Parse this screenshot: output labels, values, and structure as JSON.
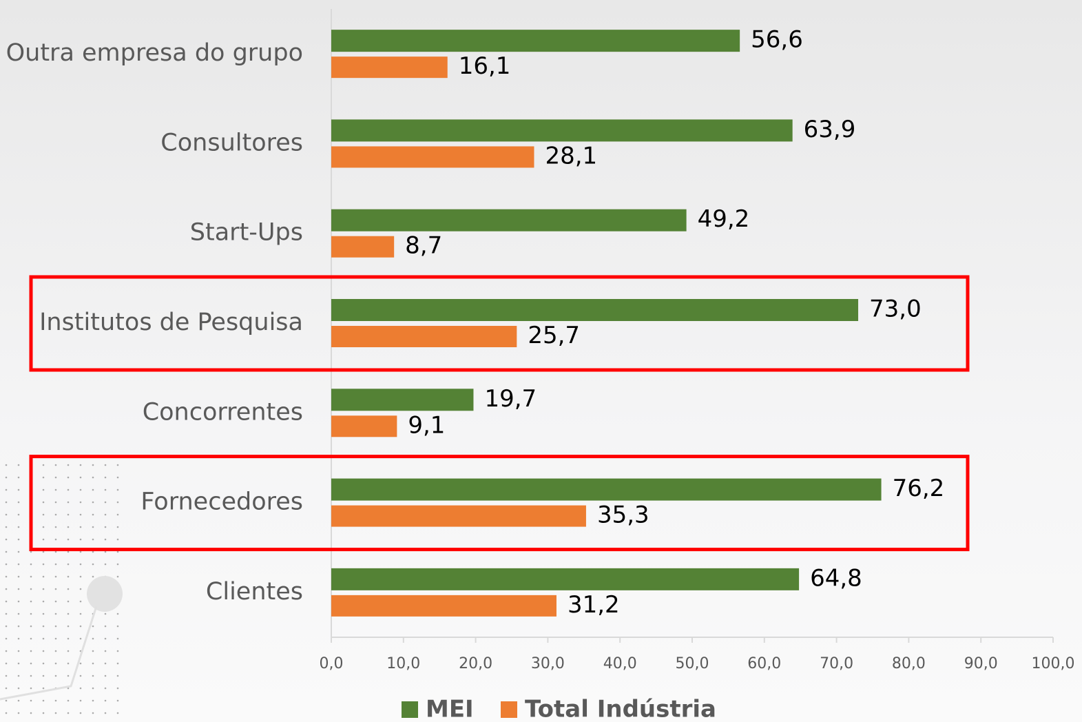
{
  "chart_data": {
    "type": "bar",
    "orientation": "horizontal",
    "categories": [
      "Outra empresa do grupo",
      "Consultores",
      "Start-Ups",
      "Institutos de Pesquisa",
      "Concorrentes",
      "Fornecedores",
      "Clientes"
    ],
    "series": [
      {
        "name": "MEI",
        "color": "#548235",
        "values": [
          56.6,
          63.9,
          49.2,
          73.0,
          19.7,
          76.2,
          64.8
        ],
        "value_labels": [
          "56,6",
          "63,9",
          "49,2",
          "73,0",
          "19,7",
          "76,2",
          "64,8"
        ]
      },
      {
        "name": "Total Indústria",
        "color": "#ed7d31",
        "values": [
          16.1,
          28.1,
          8.7,
          25.7,
          9.1,
          35.3,
          31.2
        ],
        "value_labels": [
          "16,1",
          "28,1",
          "8,7",
          "25,7",
          "9,1",
          "35,3",
          "31,2"
        ]
      }
    ],
    "xlim": [
      0,
      100
    ],
    "xticks": [
      {
        "value": 0,
        "label": "0,0"
      },
      {
        "value": 10,
        "label": "10,0"
      },
      {
        "value": 20,
        "label": "20,0"
      },
      {
        "value": 30,
        "label": "30,0"
      },
      {
        "value": 40,
        "label": "40,0"
      },
      {
        "value": 50,
        "label": "50,0"
      },
      {
        "value": 60,
        "label": "60,0"
      },
      {
        "value": 70,
        "label": "70,0"
      },
      {
        "value": 80,
        "label": "80,0"
      },
      {
        "value": 90,
        "label": "90,0"
      },
      {
        "value": 100,
        "label": "100,0"
      }
    ],
    "highlight": [
      3,
      5
    ],
    "highlight_color": "#ff0000",
    "legend": "bottom"
  }
}
